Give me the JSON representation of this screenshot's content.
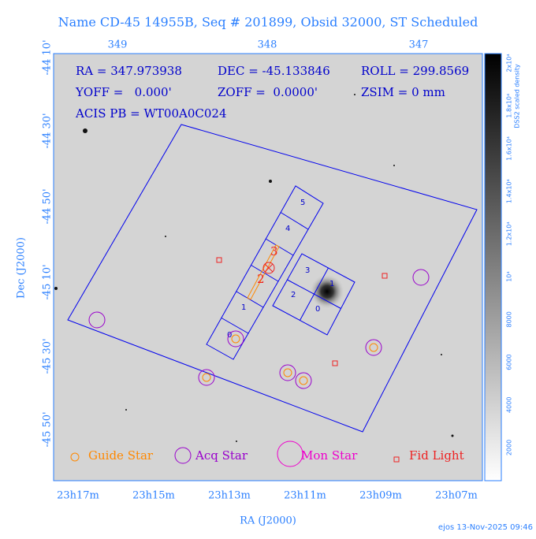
{
  "title": "Name CD-45 14955B, Seq # 201899, Obsid 32000, ST Scheduled",
  "top_axis": {
    "ticks": [
      "349",
      "348",
      "347"
    ]
  },
  "left_axis": {
    "label": "Dec (J2000)",
    "ticks": [
      "-44 10'",
      "-44 30'",
      "-44 50'",
      "-45 10'",
      "-45 30'",
      "-45 50'"
    ]
  },
  "bottom_axis": {
    "label": "RA (J2000)",
    "ticks": [
      "23h17m",
      "23h15m",
      "23h13m",
      "23h11m",
      "23h09m",
      "23h07m"
    ]
  },
  "info": [
    "RA = 347.973938",
    "DEC = -45.133846",
    "ROLL = 299.8569",
    "YOFF =   0.000'",
    "ZOFF =  0.0000'",
    "ZSIM = 0 mm",
    "ACIS PB = WT00A0C024"
  ],
  "s_array_chips": [
    "0",
    "1",
    "4",
    "5"
  ],
  "i_array_chips": [
    "3",
    "1",
    "2",
    "0"
  ],
  "markers": [
    "2",
    "3"
  ],
  "legend": [
    "Guide Star",
    "Acq Star",
    "Mon Star",
    "Fid Light"
  ],
  "colorbar": {
    "label": "DSS2 scaled density",
    "ticks": [
      "2000",
      "4000",
      "6000",
      "8000",
      "10⁴",
      "1.2x10⁴",
      "1.4x10⁴",
      "1.6x10⁴",
      "1.8x10⁴",
      "2x10⁴"
    ]
  },
  "footer": "ejos 13-Nov-2025 09:46"
}
